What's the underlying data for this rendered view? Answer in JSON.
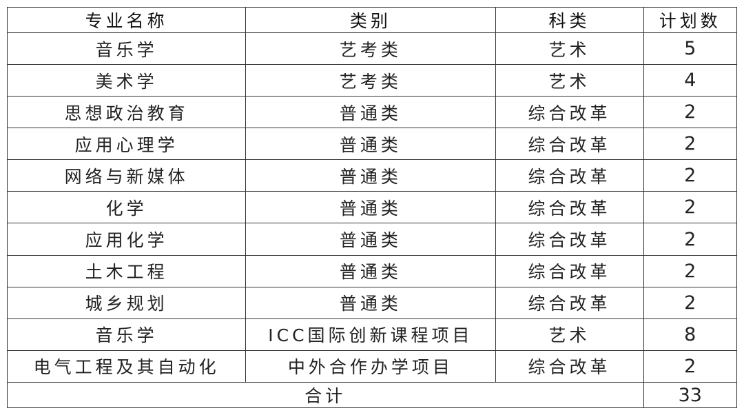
{
  "table": {
    "headers": [
      "专业名称",
      "类别",
      "科类",
      "计划数"
    ],
    "rows": [
      [
        "音乐学",
        "艺考类",
        "艺术",
        "5"
      ],
      [
        "美术学",
        "艺考类",
        "艺术",
        "4"
      ],
      [
        "思想政治教育",
        "普通类",
        "综合改革",
        "2"
      ],
      [
        "应用心理学",
        "普通类",
        "综合改革",
        "2"
      ],
      [
        "网络与新媒体",
        "普通类",
        "综合改革",
        "2"
      ],
      [
        "化学",
        "普通类",
        "综合改革",
        "2"
      ],
      [
        "应用化学",
        "普通类",
        "综合改革",
        "2"
      ],
      [
        "土木工程",
        "普通类",
        "综合改革",
        "2"
      ],
      [
        "城乡规划",
        "普通类",
        "综合改革",
        "2"
      ],
      [
        "音乐学",
        "ICC国际创新课程项目",
        "艺术",
        "8"
      ],
      [
        "电气工程及其自动化",
        "中外合作办学项目",
        "综合改革",
        "2"
      ]
    ],
    "total_label": "合计",
    "total_value": "33"
  }
}
